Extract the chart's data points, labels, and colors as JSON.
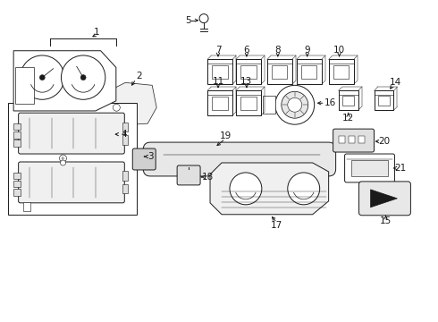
{
  "bg_color": "#ffffff",
  "fg_color": "#1a1a1a",
  "fig_width": 4.9,
  "fig_height": 3.6,
  "dpi": 100
}
